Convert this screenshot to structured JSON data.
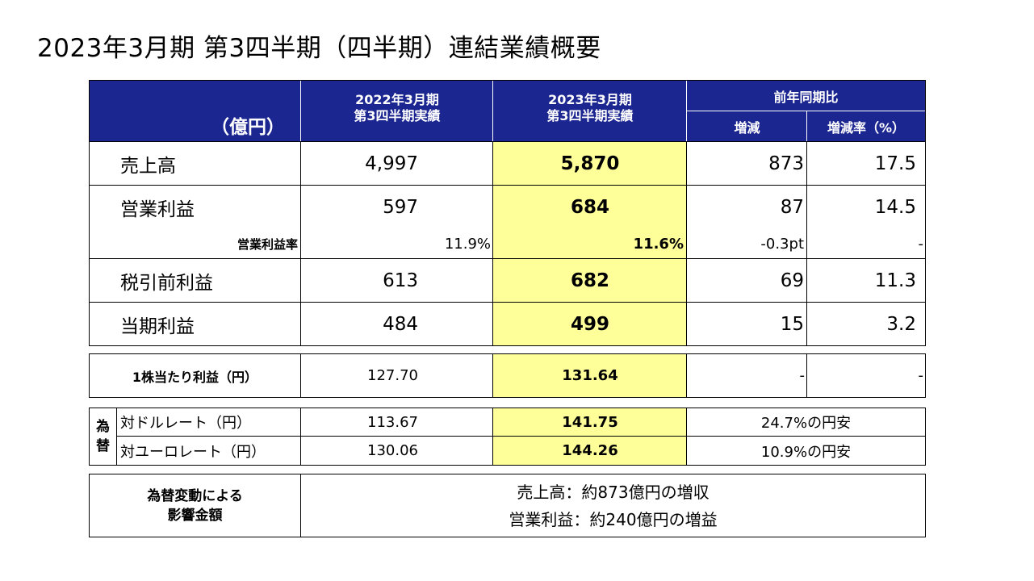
{
  "title": "2023年3月期 第3四半期（四半期）連結業績概要",
  "header": {
    "unit": "（億円）",
    "col_prev": [
      "2022年3月期",
      "第3四半期実績"
    ],
    "col_curr": [
      "2023年3月期",
      "第3四半期実績"
    ],
    "col_yoy": "前年同期比",
    "col_change": "増減",
    "col_rate": "増減率（%）"
  },
  "rows": [
    {
      "label": "売上高",
      "prev": "4,997",
      "curr": "5,870",
      "change": "873",
      "rate": "17.5"
    },
    {
      "label": "営業利益",
      "prev": "597",
      "curr": "684",
      "change": "87",
      "rate": "14.5"
    },
    {
      "label": "営業利益率",
      "prev": "11.9%",
      "curr": "11.6%",
      "change": "-0.3pt",
      "rate": "-"
    },
    {
      "label": "税引前利益",
      "prev": "613",
      "curr": "682",
      "change": "69",
      "rate": "11.3"
    },
    {
      "label": "当期利益",
      "prev": "484",
      "curr": "499",
      "change": "15",
      "rate": "3.2"
    }
  ],
  "eps": {
    "label": "1株当たり利益（円）",
    "prev": "127.70",
    "curr": "131.64",
    "change": "-",
    "rate": "-"
  },
  "fx": {
    "group_label": [
      "為",
      "替"
    ],
    "rows": [
      {
        "label": "対ドルレート（円）",
        "prev": "113.67",
        "curr": "141.75",
        "note": "24.7%の円安"
      },
      {
        "label": "対ユーロレート（円）",
        "prev": "130.06",
        "curr": "144.26",
        "note": "10.9%の円安"
      }
    ]
  },
  "impact": {
    "label": [
      "為替変動による",
      "影響金額"
    ],
    "lines": [
      "売上高：約873億円の増収",
      "営業利益：約240億円の増益"
    ]
  },
  "colors": {
    "header_bg": "#1c2690",
    "highlight": "#ffff99"
  }
}
